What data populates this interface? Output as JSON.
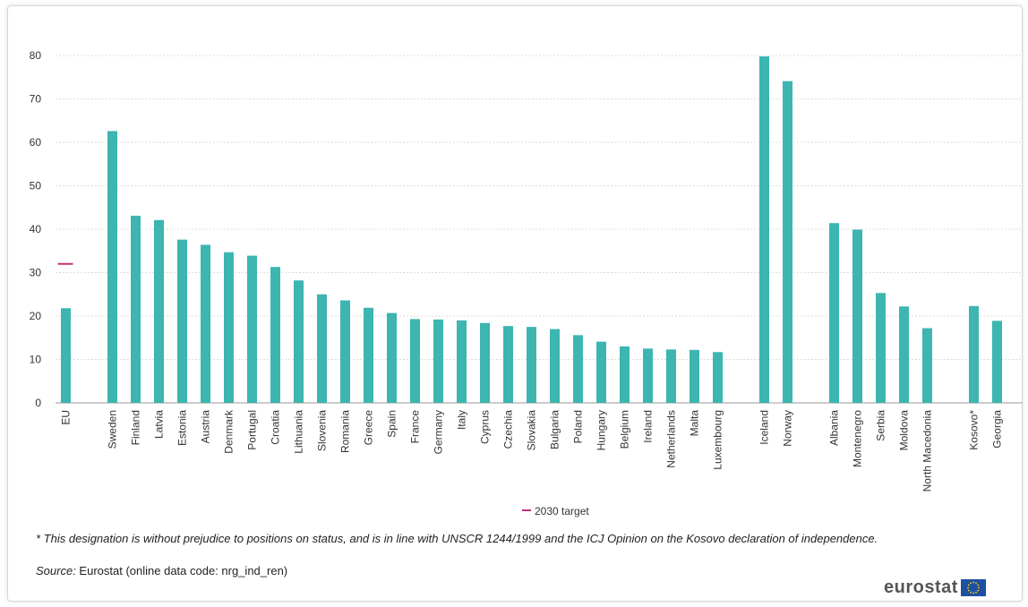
{
  "chart_data": {
    "type": "bar",
    "title": "",
    "xlabel": "",
    "ylabel": "",
    "ylim": [
      0,
      80
    ],
    "yticks": [
      0,
      10,
      20,
      30,
      40,
      50,
      60,
      70,
      80
    ],
    "grid": true,
    "groups": [
      [
        "EU"
      ],
      [
        "Sweden",
        "Finland",
        "Latvia",
        "Estonia",
        "Austria",
        "Denmark",
        "Portugal",
        "Croatia",
        "Lithuania",
        "Slovenia",
        "Romania",
        "Greece",
        "Spain",
        "France",
        "Germany",
        "Italy",
        "Cyprus",
        "Czechia",
        "Slovakia",
        "Bulgaria",
        "Poland",
        "Hungary",
        "Belgium",
        "Ireland",
        "Netherlands",
        "Malta",
        "Luxembourg"
      ],
      [
        "Iceland",
        "Norway"
      ],
      [
        "Albania",
        "Montenegro",
        "Serbia",
        "Moldova",
        "North Macedonia"
      ],
      [
        "Kosovo*",
        "Georgia"
      ]
    ],
    "categories": [
      "EU",
      "Sweden",
      "Finland",
      "Latvia",
      "Estonia",
      "Austria",
      "Denmark",
      "Portugal",
      "Croatia",
      "Lithuania",
      "Slovenia",
      "Romania",
      "Greece",
      "Spain",
      "France",
      "Germany",
      "Italy",
      "Cyprus",
      "Czechia",
      "Slovakia",
      "Bulgaria",
      "Poland",
      "Hungary",
      "Belgium",
      "Ireland",
      "Netherlands",
      "Malta",
      "Luxembourg",
      "Iceland",
      "Norway",
      "Albania",
      "Montenegro",
      "Serbia",
      "Moldova",
      "North Macedonia",
      "Kosovo*",
      "Georgia"
    ],
    "values": [
      21.8,
      62.6,
      43.1,
      42.1,
      37.6,
      36.4,
      34.7,
      33.9,
      31.3,
      28.2,
      25.0,
      23.6,
      21.9,
      20.7,
      19.3,
      19.2,
      19.0,
      18.4,
      17.7,
      17.5,
      17.0,
      15.6,
      14.1,
      13.0,
      12.5,
      12.3,
      12.2,
      11.7,
      79.8,
      74.1,
      41.4,
      39.9,
      25.3,
      22.2,
      17.2,
      22.3,
      18.9
    ],
    "target": {
      "label": "2030 target",
      "category": "EU",
      "value": 32
    },
    "legend": {
      "position": "bottom",
      "entries": [
        "2030 target"
      ]
    }
  },
  "footnote": "* This designation is without prejudice to positions on status, and is in line with UNSCR 1244/1999 and the ICJ Opinion on the Kosovo declaration of independence.",
  "source": {
    "label": "Source:",
    "text": " Eurostat (online data code: nrg_ind_ren)"
  },
  "logo": {
    "text": "eurostat"
  },
  "colors": {
    "bar": "#3db5b0",
    "target": "#c8327a",
    "grid": "#dcdcdc",
    "text": "#333333"
  }
}
